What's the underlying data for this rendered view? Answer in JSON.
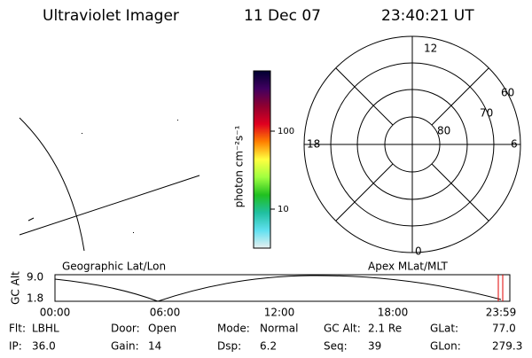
{
  "header": {
    "instrument": "Ultraviolet Imager",
    "date": "11 Dec 07",
    "time": "23:40:21 UT"
  },
  "colorbar": {
    "label": "photon cm⁻²s⁻¹",
    "ticks": [
      "100",
      "10"
    ]
  },
  "polar": {
    "hours": [
      "12",
      "18",
      "6",
      "0"
    ],
    "latitudes": [
      "60",
      "70",
      "80"
    ]
  },
  "timeline": {
    "left_title": "Geographic Lat/Lon",
    "right_title": "Apex MLat/MLT",
    "axis_label": "GC Alt",
    "y_labels": [
      "9.0",
      "1.8"
    ],
    "time_labels": [
      "00:00",
      "06:00",
      "12:00",
      "18:00",
      "23:59"
    ]
  },
  "status": [
    [
      [
        "Flt:",
        "LBHL"
      ],
      [
        "Door:",
        "Open"
      ],
      [
        "Mode:",
        "Normal"
      ],
      [
        "GC Alt:",
        "2.1 Re"
      ],
      [
        "GLat:",
        "77.0"
      ]
    ],
    [
      [
        "IP:",
        "36.0"
      ],
      [
        "Gain:",
        "14"
      ],
      [
        "Dsp:",
        "6.2"
      ],
      [
        "Seq:",
        "39"
      ],
      [
        "GLon:",
        "279.3"
      ]
    ]
  ]
}
